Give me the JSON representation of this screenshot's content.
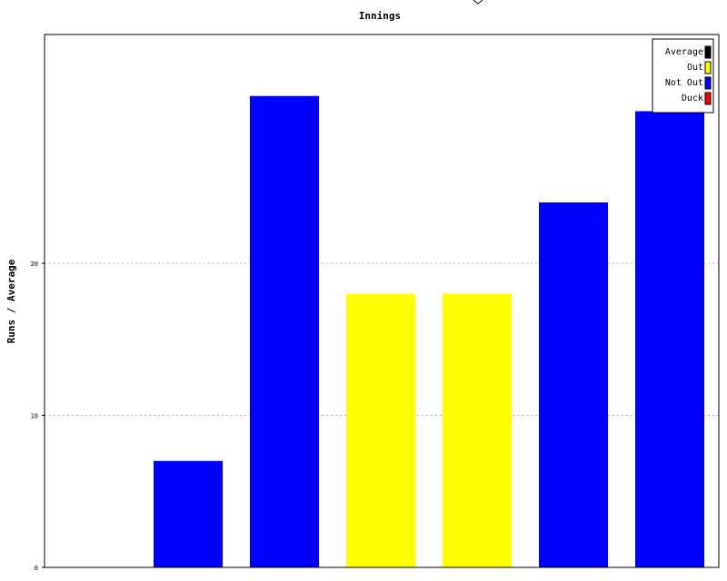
{
  "chart_data": {
    "type": "bar",
    "title": "Innings",
    "xlabel": "",
    "ylabel": "Runs / Average",
    "ylim": [
      0,
      35
    ],
    "yticks": [
      0,
      10,
      20
    ],
    "grid": true,
    "legend_position": "top-right",
    "legend": [
      {
        "name": "Average",
        "color": "#000000"
      },
      {
        "name": "Out",
        "color": "#ffff00"
      },
      {
        "name": "Not Out",
        "color": "#0000ff"
      },
      {
        "name": "Duck",
        "color": "#ff0000"
      }
    ],
    "bars": [
      {
        "value": 0,
        "status": "none"
      },
      {
        "value": 7,
        "status": "Not Out"
      },
      {
        "value": 31,
        "status": "Not Out"
      },
      {
        "value": 18,
        "status": "Out"
      },
      {
        "value": 18,
        "status": "Out"
      },
      {
        "value": 24,
        "status": "Not Out"
      },
      {
        "value": 30,
        "status": "Not Out"
      }
    ]
  }
}
